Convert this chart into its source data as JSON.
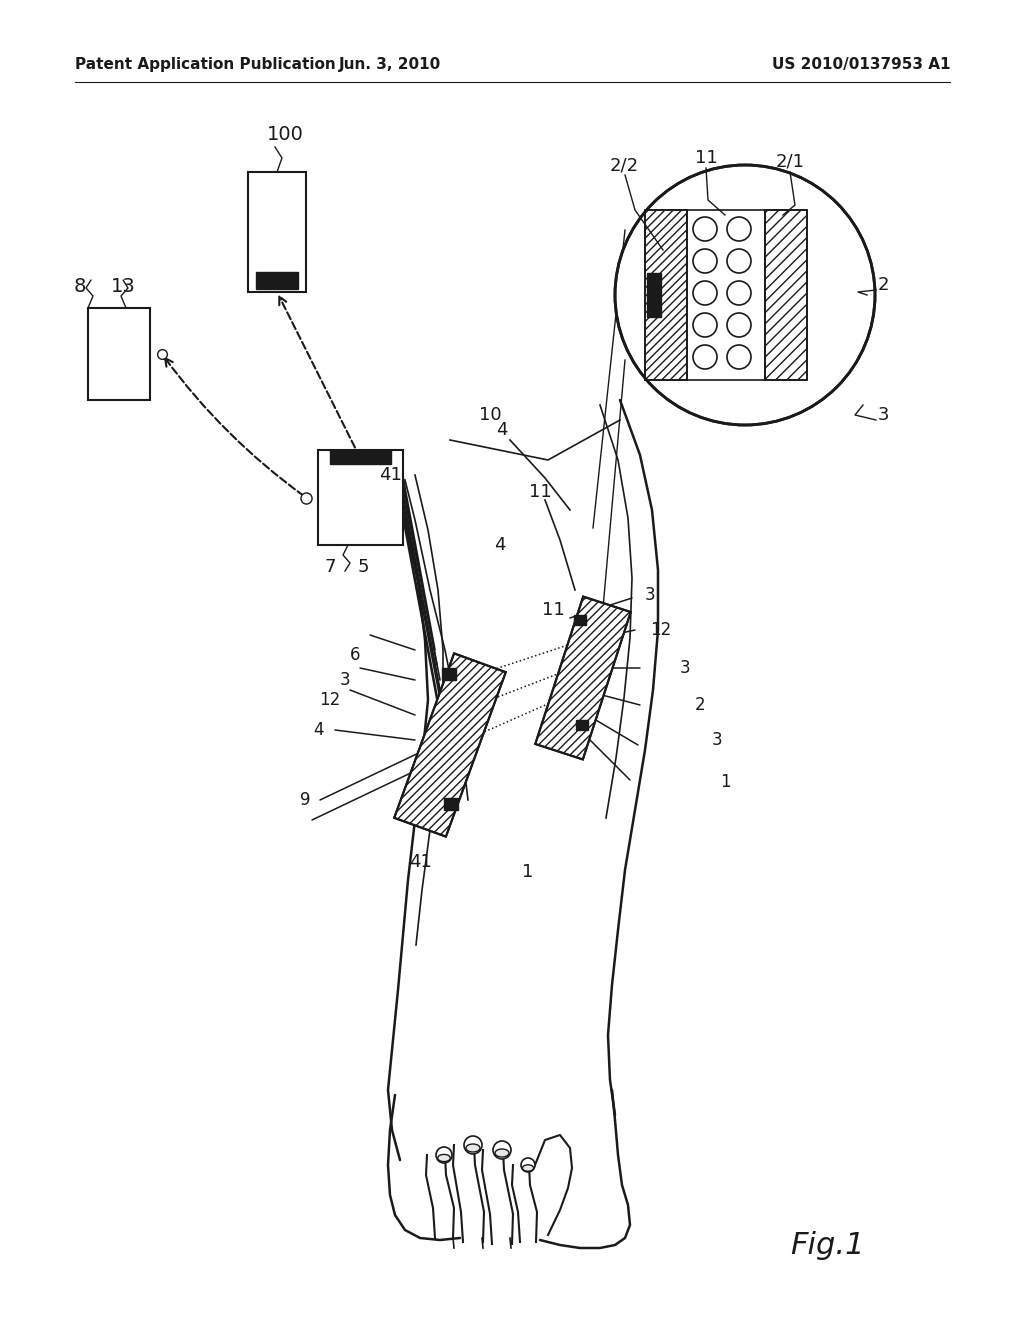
{
  "bg_color": "#ffffff",
  "header_left": "Patent Application Publication",
  "header_center": "Jun. 3, 2010",
  "header_right": "US 2010/0137953 A1",
  "fig_label": "Fig.1"
}
